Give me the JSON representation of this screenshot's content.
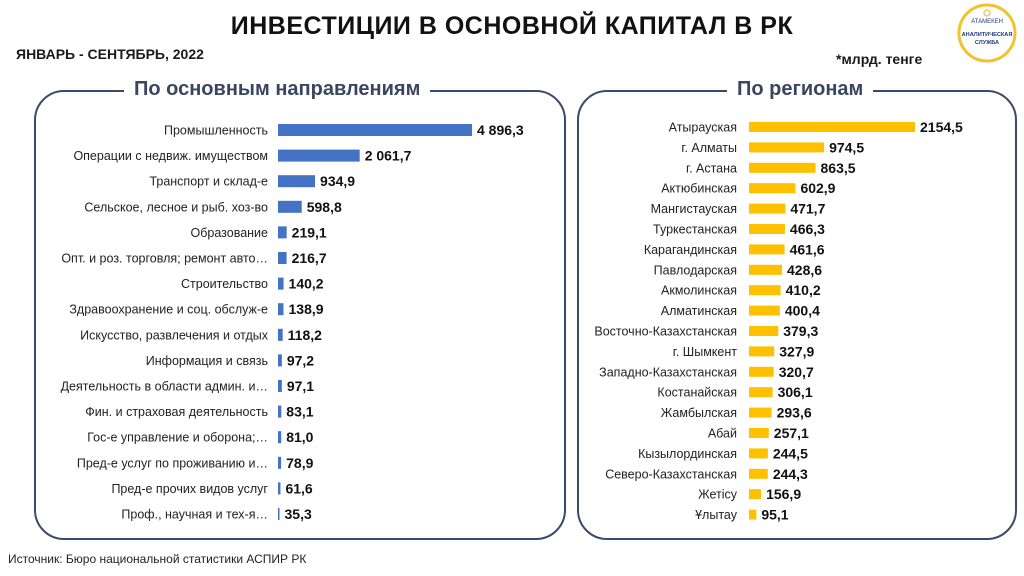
{
  "header": {
    "title": "ИНВЕСТИЦИИ В ОСНОВНОЙ КАПИТАЛ В РК",
    "period": "ЯНВАРЬ - СЕНТЯБРЬ, 2022",
    "unit": "*млрд. тенге"
  },
  "logo": {
    "top_text": "АТАМЕКЕН",
    "line1": "АНАЛИТИЧЕСКАЯ",
    "line2": "СЛУЖБА",
    "ring_color": "#f2c230",
    "text_color": "#1f3a7a"
  },
  "footer": {
    "source": "Источник: Бюро национальной  статистики  АСПИР РК"
  },
  "colors": {
    "left_bar": "#4472c4",
    "right_bar": "#ffc000",
    "panel_border": "#3b4a6b"
  },
  "chart_data": [
    {
      "type": "bar",
      "orientation": "horizontal",
      "title": "По основным направлениям",
      "categories": [
        "Промышленность",
        "Операции с недвиж. имуществом",
        "Транспорт и склад-е",
        "Сельское, лесное и рыб. хоз-во",
        "Образование",
        "Опт. и роз. торговля; ремонт авто…",
        "Строительство",
        "Здравоохранение и соц. обслуж-е",
        "Искусство, развлечения и отдых",
        "Информация и связь",
        "Деятельность в области админ. и…",
        "Фин. и страховая деятельность",
        "Гос-е управление и оборона;…",
        "Пред-е услуг по проживанию и…",
        "Пред-е прочих видов услуг",
        "Проф., научная и тех-я…"
      ],
      "values": [
        4896.3,
        2061.7,
        934.9,
        598.8,
        219.1,
        216.7,
        140.2,
        138.9,
        118.2,
        97.2,
        97.1,
        83.1,
        81.0,
        78.9,
        61.6,
        35.3
      ],
      "labels": [
        "4 896,3",
        "2 061,7",
        "934,9",
        "598,8",
        "219,1",
        "216,7",
        "140,2",
        "138,9",
        "118,2",
        "97,2",
        "97,1",
        "83,1",
        "81,0",
        "78,9",
        "61,6",
        "35,3"
      ]
    },
    {
      "type": "bar",
      "orientation": "horizontal",
      "title": "По регионам",
      "categories": [
        "Атырауская",
        "г. Алматы",
        "г. Астана",
        "Актюбинская",
        "Мангистауская",
        "Туркестанская",
        "Карагандинская",
        "Павлодарская",
        "Акмолинская",
        "Алматинская",
        "Восточно-Казахстанская",
        "г. Шымкент",
        "Западно-Казахстанская",
        "Костанайская",
        "Жамбылская",
        "Абай",
        "Кызылординская",
        "Северо-Казахстанская",
        "Жетісу",
        "Ұлытау"
      ],
      "values": [
        2154.5,
        974.5,
        863.5,
        602.9,
        471.7,
        466.3,
        461.6,
        428.6,
        410.2,
        400.4,
        379.3,
        327.9,
        320.7,
        306.1,
        293.6,
        257.1,
        244.5,
        244.3,
        156.9,
        95.1
      ],
      "labels": [
        "2154,5",
        "974,5",
        "863,5",
        "602,9",
        "471,7",
        "466,3",
        "461,6",
        "428,6",
        "410,2",
        "400,4",
        "379,3",
        "327,9",
        "320,7",
        "306,1",
        "293,6",
        "257,1",
        "244,5",
        "244,3",
        "156,9",
        "95,1"
      ]
    }
  ]
}
